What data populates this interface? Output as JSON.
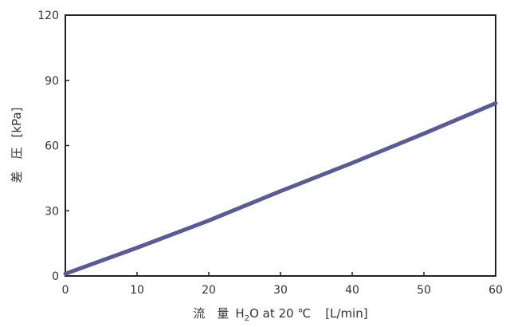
{
  "chart_data": {
    "type": "line",
    "title": "",
    "xlabel": {
      "prefix": "流　量",
      "formula_main": "H",
      "formula_sub": "2",
      "formula_rest": "O at 20 ℃",
      "unit": "[L/min]"
    },
    "ylabel": {
      "text": "差　圧",
      "unit": "[kPa]"
    },
    "xlim": [
      0,
      60
    ],
    "ylim": [
      0,
      120
    ],
    "xticks": [
      "0",
      "10",
      "20",
      "30",
      "40",
      "50",
      "60"
    ],
    "yticks": [
      "0",
      "30",
      "60",
      "90",
      "120"
    ],
    "grid": false,
    "series": [
      {
        "color": "#5a5a96",
        "x": [
          0,
          10,
          20,
          30,
          40,
          50,
          60
        ],
        "y": [
          1,
          13,
          25.5,
          39,
          52,
          65.5,
          79.5
        ]
      }
    ]
  }
}
